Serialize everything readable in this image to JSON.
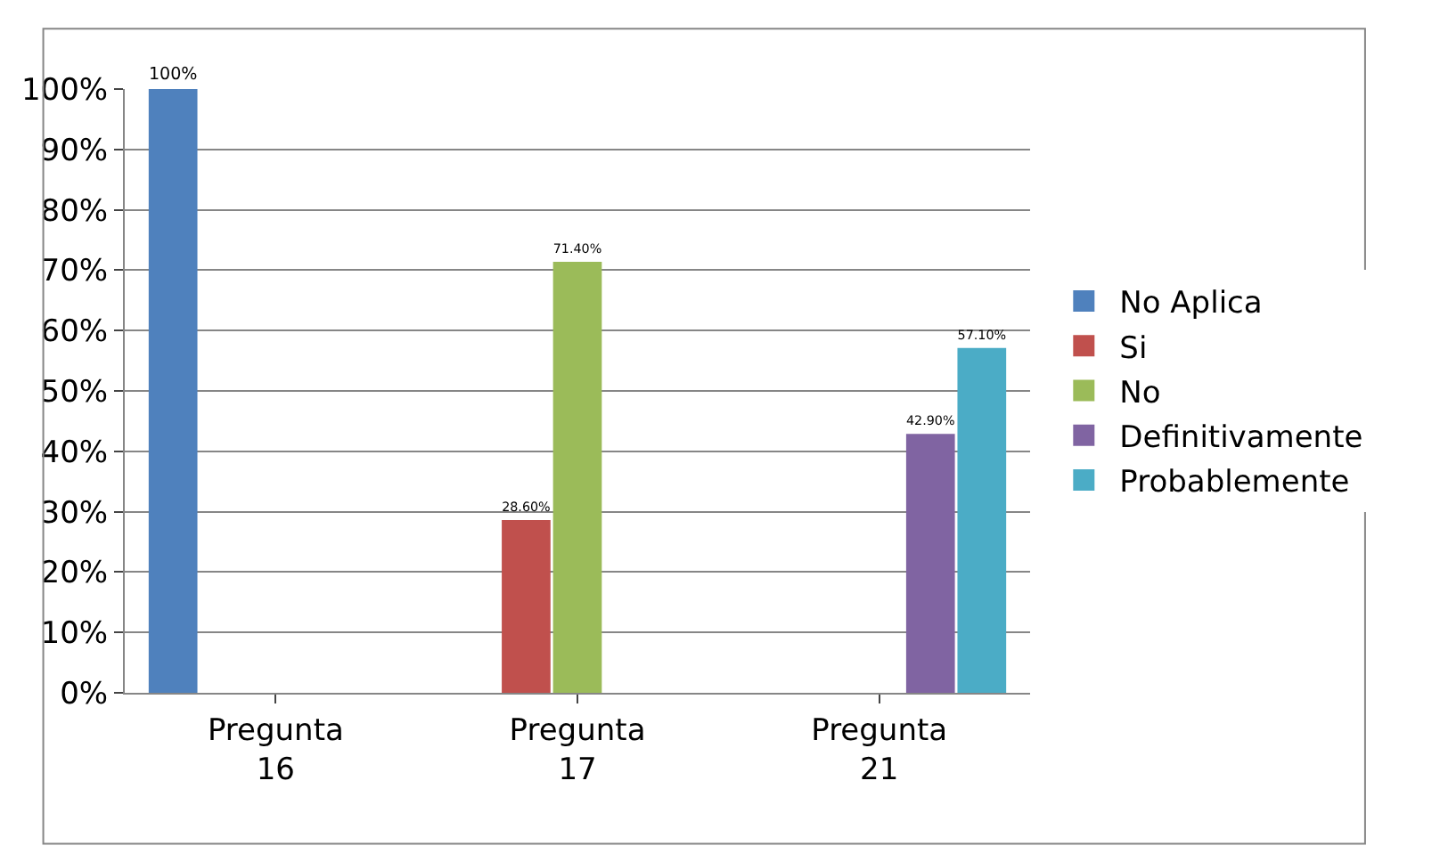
{
  "chart_data": {
    "type": "bar",
    "categories": [
      "Pregunta\n16",
      "Pregunta\n17",
      "Pregunta\n21"
    ],
    "series": [
      {
        "name": "No Aplica",
        "color": "#4f81bd",
        "values": [
          100,
          null,
          null
        ],
        "value_labels": [
          "100%",
          null,
          null
        ]
      },
      {
        "name": "Si",
        "color": "#c0504d",
        "values": [
          null,
          28.6,
          null
        ],
        "value_labels": [
          null,
          "28.60%",
          null
        ]
      },
      {
        "name": "No",
        "color": "#9bbb59",
        "values": [
          null,
          71.4,
          null
        ],
        "value_labels": [
          null,
          "71.40%",
          null
        ]
      },
      {
        "name": "Definitivamente",
        "color": "#8064a2",
        "values": [
          null,
          null,
          42.9
        ],
        "value_labels": [
          null,
          null,
          "42.90%"
        ]
      },
      {
        "name": "Probablemente",
        "color": "#4bacc6",
        "values": [
          null,
          null,
          57.1
        ],
        "value_labels": [
          null,
          null,
          "57.10%"
        ]
      }
    ],
    "ylim": [
      0,
      100
    ],
    "yticks": [
      {
        "value": 0,
        "label": "0%"
      },
      {
        "value": 10,
        "label": "10%"
      },
      {
        "value": 20,
        "label": "20%"
      },
      {
        "value": 30,
        "label": "30%"
      },
      {
        "value": 40,
        "label": "40%"
      },
      {
        "value": 50,
        "label": "50%"
      },
      {
        "value": 60,
        "label": "60%"
      },
      {
        "value": 70,
        "label": "70%"
      },
      {
        "value": 80,
        "label": "80%"
      },
      {
        "value": 90,
        "label": "90%"
      },
      {
        "value": 100,
        "label": "100%"
      }
    ],
    "grid": "y",
    "legend": "right"
  }
}
